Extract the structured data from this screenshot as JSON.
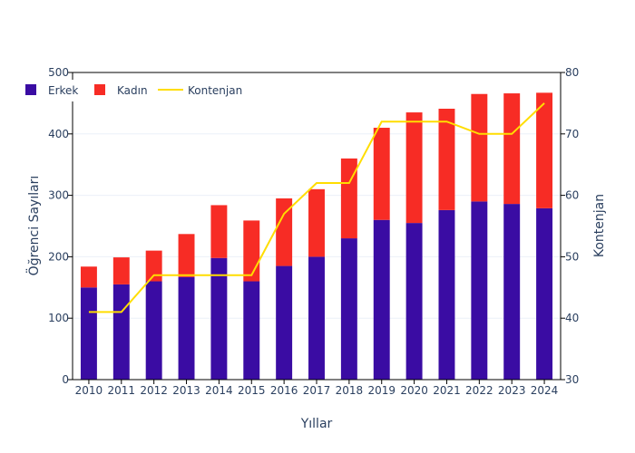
{
  "chart_data": {
    "type": "bar",
    "barmode": "stack",
    "title": "",
    "categories": [
      "2010",
      "2011",
      "2012",
      "2013",
      "2014",
      "2015",
      "2016",
      "2017",
      "2018",
      "2019",
      "2020",
      "2021",
      "2022",
      "2023",
      "2024"
    ],
    "xlabel": "Yıllar",
    "ylabel": "Öğrenci Sayıları",
    "y2label": "Kontenjan",
    "ylim": [
      0,
      500
    ],
    "y2lim": [
      30,
      80
    ],
    "yticks": [
      "0",
      "100",
      "200",
      "300",
      "400",
      "500"
    ],
    "y2ticks": [
      "30",
      "40",
      "50",
      "60",
      "70",
      "80"
    ],
    "grid": true,
    "legend": "top-left",
    "series": [
      {
        "name": "Erkek",
        "type": "bar",
        "color": "#3a0ca3",
        "values": [
          150,
          155,
          160,
          167,
          198,
          160,
          185,
          200,
          230,
          260,
          255,
          276,
          290,
          286,
          279
        ]
      },
      {
        "name": "Kadın",
        "type": "bar",
        "color": "#f72c25",
        "values": [
          34,
          44,
          50,
          70,
          86,
          99,
          110,
          110,
          130,
          150,
          180,
          165,
          175,
          180,
          188
        ]
      },
      {
        "name": "Kontenjan",
        "type": "line",
        "axis": "y2",
        "color": "#ffdd00",
        "values": [
          41,
          41,
          47,
          47,
          47,
          47,
          57,
          62,
          62,
          72,
          72,
          72,
          70,
          70,
          75
        ]
      }
    ]
  }
}
